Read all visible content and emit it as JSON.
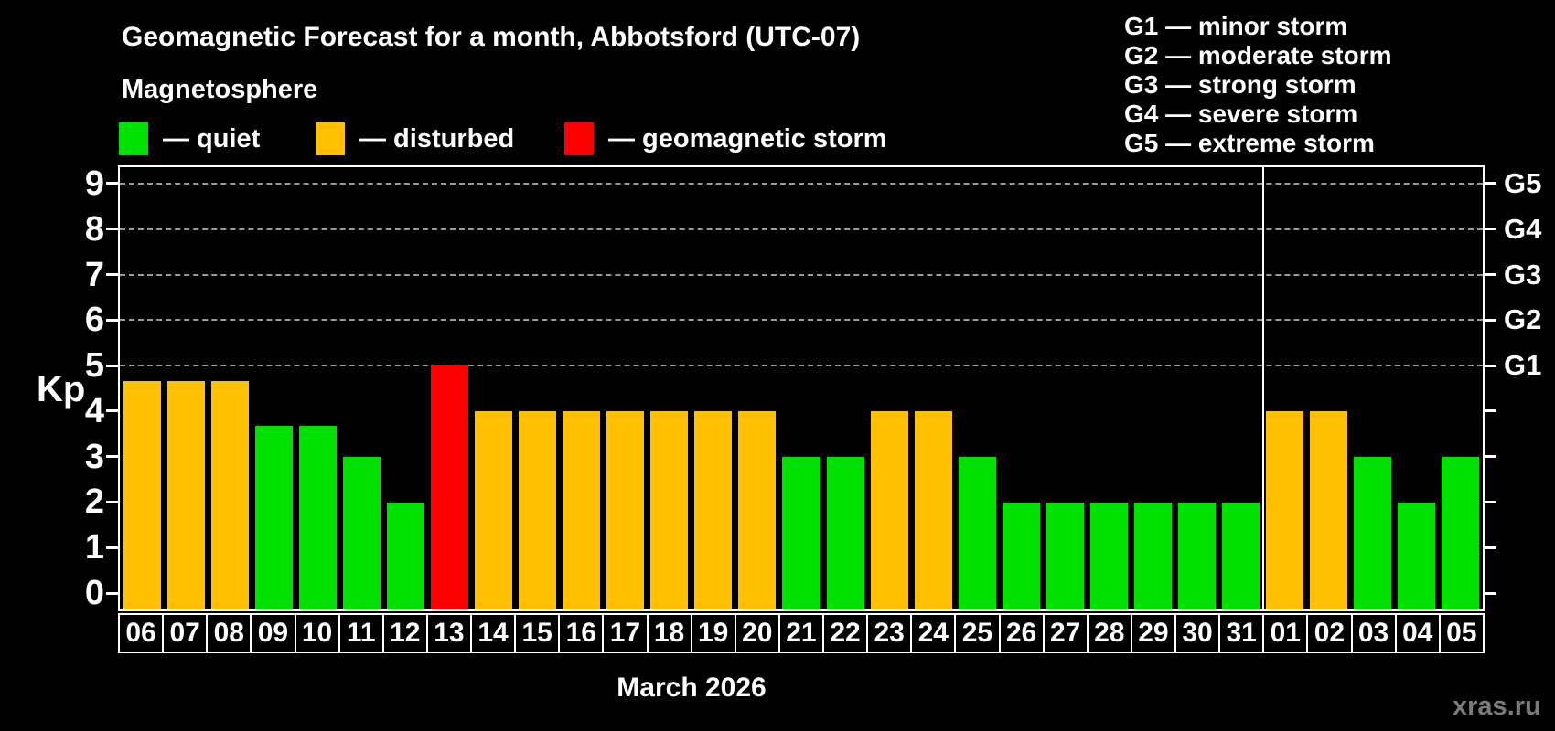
{
  "title": "Geomagnetic Forecast for a month, Abbotsford (UTC-07)",
  "subtitle": "Magnetosphere",
  "legend": {
    "items": [
      {
        "key": "quiet",
        "label": "— quiet",
        "color": "#00e100"
      },
      {
        "key": "disturbed",
        "label": "— disturbed",
        "color": "#ffc003"
      },
      {
        "key": "storm",
        "label": "— geomagnetic storm",
        "color": "#fc0000"
      }
    ]
  },
  "g_legend": [
    "G1 — minor storm",
    "G2 — moderate storm",
    "G3 — strong storm",
    "G4 — severe storm",
    "G5 — extreme storm"
  ],
  "y_axis": {
    "label": "Kp",
    "ticks": [
      0,
      1,
      2,
      3,
      4,
      5,
      6,
      7,
      8,
      9
    ]
  },
  "right_axis": {
    "labels": [
      "G1",
      "G2",
      "G3",
      "G4",
      "G5"
    ],
    "kp_positions": [
      5,
      6,
      7,
      8,
      9
    ]
  },
  "month_label": "March 2026",
  "watermark": "xras.ru",
  "chart_data": {
    "type": "bar",
    "title": "Geomagnetic Forecast for a month, Abbotsford (UTC-07)",
    "ylabel": "Kp",
    "categories": [
      "06",
      "07",
      "08",
      "09",
      "10",
      "11",
      "12",
      "13",
      "14",
      "15",
      "16",
      "17",
      "18",
      "19",
      "20",
      "21",
      "22",
      "23",
      "24",
      "25",
      "26",
      "27",
      "28",
      "29",
      "30",
      "31",
      "01",
      "02",
      "03",
      "04",
      "05"
    ],
    "values": [
      4.67,
      4.67,
      4.67,
      3.67,
      3.67,
      3,
      2,
      5,
      4,
      4,
      4,
      4,
      4,
      4,
      4,
      3,
      3,
      4,
      4,
      3,
      2,
      2,
      2,
      2,
      2,
      2,
      4,
      4,
      3,
      2,
      3
    ],
    "statuses": [
      "disturbed",
      "disturbed",
      "disturbed",
      "quiet",
      "quiet",
      "quiet",
      "quiet",
      "storm",
      "disturbed",
      "disturbed",
      "disturbed",
      "disturbed",
      "disturbed",
      "disturbed",
      "disturbed",
      "quiet",
      "quiet",
      "disturbed",
      "disturbed",
      "quiet",
      "quiet",
      "quiet",
      "quiet",
      "quiet",
      "quiet",
      "quiet",
      "disturbed",
      "disturbed",
      "quiet",
      "quiet",
      "quiet"
    ],
    "ylim": [
      -0.36,
      9.36
    ],
    "gridlines_kp": [
      5,
      6,
      7,
      8,
      9
    ],
    "grid": "dashed-horizontal-at-storm-levels",
    "legend_position": "top-left",
    "month_separator_after_index": 25
  }
}
